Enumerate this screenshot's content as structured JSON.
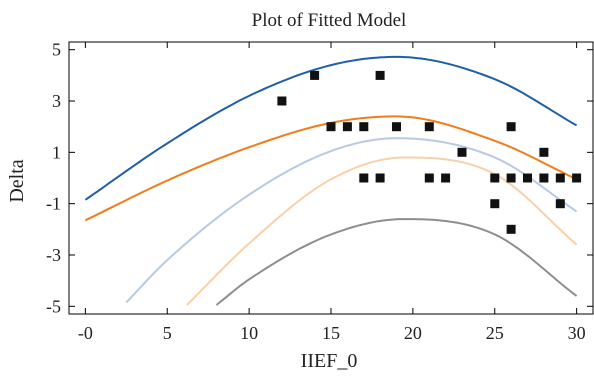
{
  "chart_data": {
    "type": "scatter",
    "title": "Plot of Fitted Model",
    "xlabel": "IIEF_0",
    "ylabel": "Delta",
    "xlim": [
      -1,
      31
    ],
    "ylim": [
      -5.3,
      5.3
    ],
    "x_ticks": [
      0,
      5,
      10,
      15,
      20,
      25,
      30
    ],
    "x_tick_labels": [
      "-0",
      "5",
      "10",
      "15",
      "20",
      "25",
      "30"
    ],
    "y_ticks": [
      5,
      3,
      1,
      -1,
      -3,
      -5
    ],
    "y_tick_labels": [
      "5",
      "3",
      "1",
      "-1",
      "-3",
      "-5"
    ],
    "grid": false,
    "legend": "none",
    "points": [
      {
        "x": 12,
        "y": 3
      },
      {
        "x": 14,
        "y": 4
      },
      {
        "x": 18,
        "y": 4
      },
      {
        "x": 15,
        "y": 2
      },
      {
        "x": 16,
        "y": 2
      },
      {
        "x": 17,
        "y": 2
      },
      {
        "x": 19,
        "y": 2
      },
      {
        "x": 21,
        "y": 2
      },
      {
        "x": 26,
        "y": 2
      },
      {
        "x": 23,
        "y": 1
      },
      {
        "x": 28,
        "y": 1
      },
      {
        "x": 17,
        "y": 0
      },
      {
        "x": 18,
        "y": 0
      },
      {
        "x": 21,
        "y": 0
      },
      {
        "x": 22,
        "y": 0
      },
      {
        "x": 25,
        "y": 0
      },
      {
        "x": 26,
        "y": 0
      },
      {
        "x": 27,
        "y": 0
      },
      {
        "x": 28,
        "y": 0
      },
      {
        "x": 29,
        "y": 0
      },
      {
        "x": 30,
        "y": 0
      },
      {
        "x": 25,
        "y": -1
      },
      {
        "x": 29,
        "y": -1
      },
      {
        "x": 26,
        "y": -2
      }
    ],
    "series": [
      {
        "color": "#1f5fa6",
        "x": [
          0,
          5,
          10,
          15,
          19,
          25,
          30
        ],
        "y": [
          -0.85,
          1.35,
          3.2,
          4.4,
          4.72,
          3.85,
          2.05
        ]
      },
      {
        "color": "#f07d1a",
        "x": [
          0,
          5,
          10,
          15,
          19,
          25,
          30
        ],
        "y": [
          -1.65,
          -0.1,
          1.2,
          2.15,
          2.4,
          1.45,
          -0.05
        ]
      },
      {
        "color": "#b8c9e2",
        "x": [
          2.5,
          5,
          10,
          15,
          19,
          25,
          30
        ],
        "y": [
          -4.85,
          -3.2,
          -0.65,
          1.05,
          1.55,
          0.8,
          -1.3
        ]
      },
      {
        "color": "#fbd0a8",
        "x": [
          6.2,
          10,
          15,
          19.5,
          25,
          30
        ],
        "y": [
          -4.95,
          -2.55,
          -0.05,
          0.8,
          0.15,
          -2.6
        ]
      },
      {
        "color": "#8e8e8e",
        "x": [
          8,
          10,
          15,
          19.5,
          25,
          30
        ],
        "y": [
          -4.95,
          -3.95,
          -2.2,
          -1.6,
          -2.2,
          -4.6
        ]
      }
    ]
  }
}
